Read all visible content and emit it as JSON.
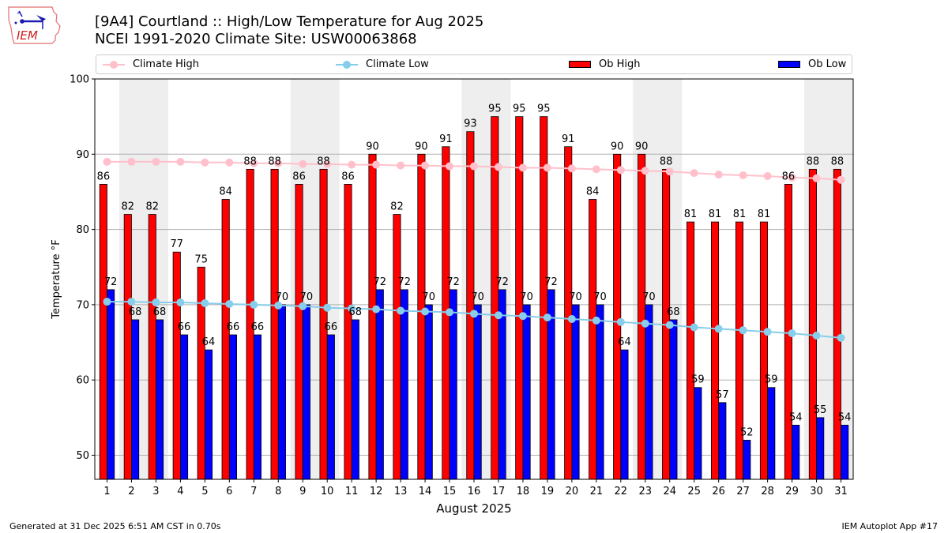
{
  "header": {
    "title_line1": "[9A4] Courtland :: High/Low Temperature for Aug 2025",
    "title_line2": "NCEI 1991-2020 Climate Site: USW00063868",
    "logo_text": "IEM"
  },
  "footer": {
    "generated": "Generated at 31 Dec 2025 6:51 AM CST in 0.70s",
    "app": "IEM Autoplot App #17"
  },
  "colors": {
    "ob_high": "#ff0000",
    "ob_low": "#0000ff",
    "climate_high": "#ffc0cb",
    "climate_low": "#87ceeb",
    "weekend_shade": "#eeeeee",
    "grid": "#b0b0b0"
  },
  "chart_data": {
    "type": "bar",
    "title": "[9A4] Courtland :: High/Low Temperature for Aug 2025",
    "subtitle": "NCEI 1991-2020 Climate Site: USW00063868",
    "xlabel": "August 2025",
    "ylabel": "Temperature °F",
    "categories": [
      "1",
      "2",
      "3",
      "4",
      "5",
      "6",
      "7",
      "8",
      "9",
      "10",
      "11",
      "12",
      "13",
      "14",
      "15",
      "16",
      "17",
      "18",
      "19",
      "20",
      "21",
      "22",
      "23",
      "24",
      "25",
      "26",
      "27",
      "28",
      "29",
      "30",
      "31"
    ],
    "ylim": [
      46.8,
      100
    ],
    "xlim": [
      0.5,
      31.5
    ],
    "yticks": [
      50,
      60,
      70,
      80,
      90,
      100
    ],
    "grid": true,
    "legend_position": "top (above plot, 4 columns)",
    "shaded_days": [
      2,
      3,
      9,
      10,
      16,
      17,
      23,
      24,
      30,
      31
    ],
    "series": [
      {
        "name": "Climate High",
        "kind": "line",
        "values": [
          89.0,
          89.0,
          89.0,
          89.0,
          88.9,
          88.9,
          88.8,
          88.8,
          88.7,
          88.7,
          88.6,
          88.6,
          88.5,
          88.5,
          88.4,
          88.4,
          88.3,
          88.2,
          88.2,
          88.1,
          88.0,
          87.9,
          87.8,
          87.7,
          87.5,
          87.3,
          87.2,
          87.1,
          86.9,
          86.8,
          86.6
        ]
      },
      {
        "name": "Climate Low",
        "kind": "line",
        "values": [
          70.4,
          70.4,
          70.3,
          70.3,
          70.2,
          70.1,
          70.0,
          69.9,
          69.8,
          69.6,
          69.5,
          69.4,
          69.2,
          69.1,
          69.0,
          68.8,
          68.6,
          68.5,
          68.3,
          68.1,
          67.9,
          67.7,
          67.5,
          67.3,
          67.0,
          66.8,
          66.6,
          66.4,
          66.2,
          65.9,
          65.6
        ]
      },
      {
        "name": "Ob High",
        "kind": "bar",
        "values": [
          86,
          82,
          82,
          77,
          75,
          84,
          88,
          88,
          86,
          88,
          86,
          90,
          82,
          90,
          91,
          93,
          95,
          95,
          95,
          91,
          84,
          90,
          90,
          88,
          81,
          81,
          81,
          81,
          86,
          88,
          88
        ]
      },
      {
        "name": "Ob Low",
        "kind": "bar",
        "values": [
          72,
          68,
          68,
          66,
          64,
          66,
          66,
          70,
          70,
          66,
          68,
          72,
          72,
          70,
          72,
          70,
          72,
          70,
          72,
          70,
          70,
          64,
          70,
          68,
          59,
          57,
          52,
          59,
          54,
          55,
          54
        ]
      }
    ]
  }
}
